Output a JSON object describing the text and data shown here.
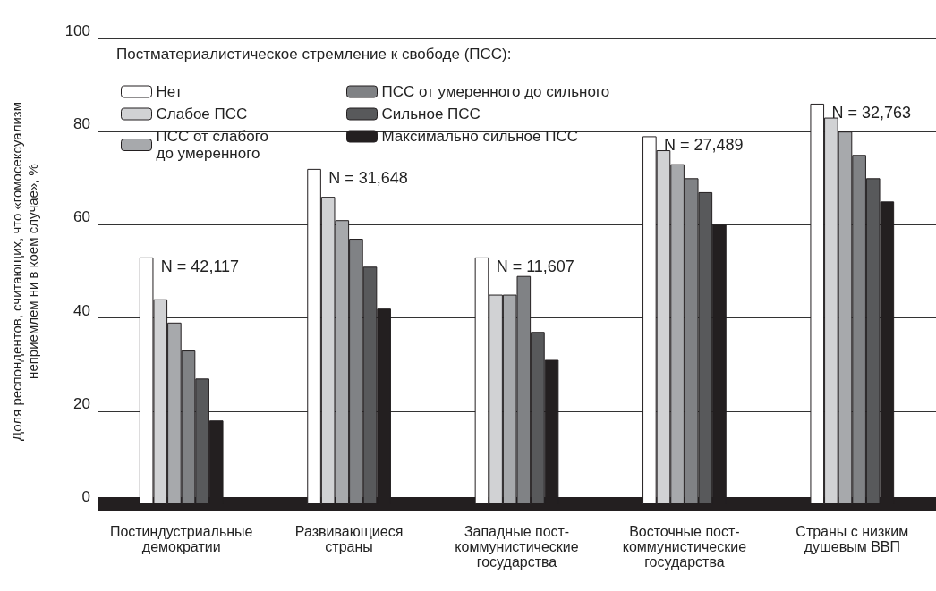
{
  "chart_data": {
    "type": "bar",
    "ylabel": "Доля респондентов, считающих, что «гомосексуализм неприемлем ни в коем случае», %",
    "legend_title": "Постматериалистическое стремление к свободе (ПСС):",
    "categories": [
      "Постиндустриальные демократии",
      "Развивающиеся страны",
      "Западные пост-коммунистические государства",
      "Восточные пост-коммунистические государства",
      "Страны с низким душевым ВВП"
    ],
    "series": [
      {
        "name": "Нет",
        "color": "#ffffff",
        "values": [
          53,
          72,
          53,
          79,
          86
        ]
      },
      {
        "name": "Слабое ПСС",
        "color": "#d1d2d4",
        "values": [
          44,
          66,
          45,
          76,
          83
        ]
      },
      {
        "name": "ПСС от слабого до умеренного",
        "color": "#a7a9ac",
        "values": [
          39,
          61,
          45,
          73,
          80
        ]
      },
      {
        "name": "ПСС от умеренного до сильного",
        "color": "#808285",
        "values": [
          33,
          57,
          49,
          70,
          75
        ]
      },
      {
        "name": "Сильное ПСС",
        "color": "#58595b",
        "values": [
          27,
          51,
          37,
          67,
          70
        ]
      },
      {
        "name": "Максимально сильное ПСС",
        "color": "#231f20",
        "values": [
          18,
          42,
          31,
          60,
          65
        ]
      }
    ],
    "ylim": [
      0,
      100
    ],
    "yticks": [
      0,
      20,
      40,
      60,
      80,
      100
    ],
    "grid": "y",
    "legend": "top left",
    "annotations": [
      "N = 42,117",
      "N = 31,648",
      "N = 11,607",
      "N = 27,489",
      "N = 32,763"
    ]
  }
}
